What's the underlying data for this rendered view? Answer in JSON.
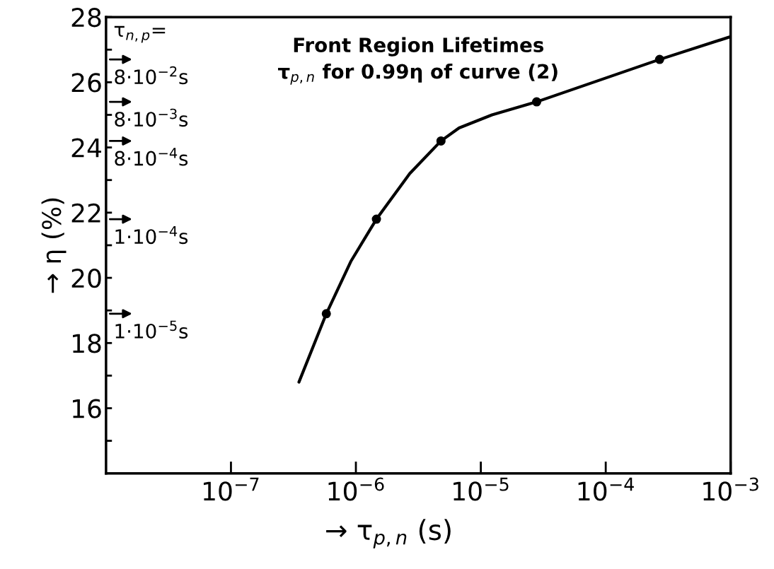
{
  "chart_data": {
    "type": "line",
    "title": "Front Region Lifetimes",
    "subtitle": "τ$_{p,n}$ for 0.99η of curve (2)",
    "xlabel": "→ τ$_{p,n}$ (s)",
    "ylabel": "→ η (%)",
    "log": "x",
    "grid": false,
    "xlim": [
      1e-08,
      0.001
    ],
    "xticks": [
      {
        "value": 1e-07,
        "label": "10$^{−7}$"
      },
      {
        "value": 1e-06,
        "label": "10$^{−6}$"
      },
      {
        "value": 1e-05,
        "label": "10$^{−5}$"
      },
      {
        "value": 0.0001,
        "label": "10$^{−4}$"
      },
      {
        "value": 0.001,
        "label": "10$^{−3}$"
      }
    ],
    "ylim": [
      14,
      28
    ],
    "yticks": [
      {
        "value": 15,
        "label": null
      },
      16,
      {
        "value": 17,
        "label": null
      },
      18,
      {
        "value": 19,
        "label": null
      },
      20,
      {
        "value": 21,
        "label": null
      },
      22,
      {
        "value": 23,
        "label": null
      },
      24,
      {
        "value": 25,
        "label": null
      },
      26,
      {
        "value": 27,
        "label": null
      },
      28
    ],
    "series": [
      {
        "type": "line",
        "color": "#000000",
        "marker": "none",
        "line_style": "solid",
        "x": [
          3.5e-07,
          5.8e-07,
          9.1e-07,
          1.46e-06,
          2.7e-06,
          4.8e-06,
          6.7e-06,
          1.23e-05,
          2.8e-05,
          0.00027,
          0.001
        ],
        "values": [
          16.8,
          18.9,
          20.5,
          21.8,
          23.2,
          24.2,
          24.6,
          25.0,
          25.4,
          26.7,
          27.4
        ]
      },
      {
        "type": "scatter",
        "color": "#000000",
        "marker": "circle",
        "x": [
          5.8e-07,
          1.46e-06,
          4.8e-06,
          2.8e-05,
          0.00027
        ],
        "values": [
          18.9,
          21.8,
          24.2,
          25.4,
          26.7
        ]
      }
    ],
    "annotations": [
      "τ$_{n,p}$=",
      "8·10$^{−2}$s",
      "8·10$^{−3}$s",
      "8·10$^{−4}$s",
      "1·10$^{−4}$s",
      "1·10$^{−5}$s"
    ]
  }
}
